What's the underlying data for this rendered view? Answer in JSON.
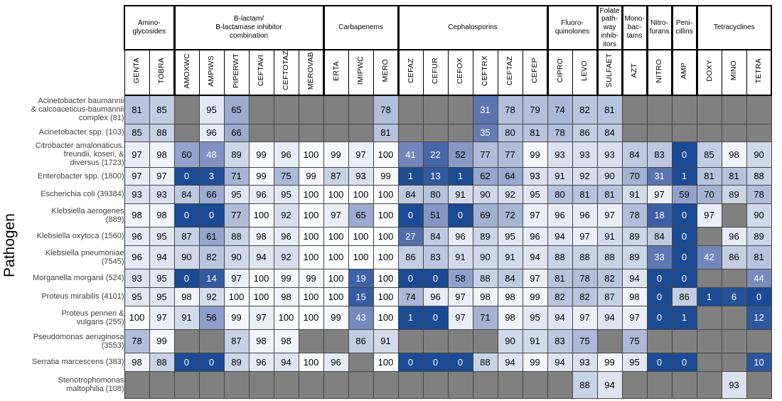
{
  "chart_data": {
    "type": "heatmap",
    "ylabel": "Pathogen",
    "grid": true,
    "color_scale": {
      "min_value": 0,
      "max_value": 100,
      "min_color": "#1a4a93",
      "max_color": "#fbfcfe",
      "no_data_color": "#808080",
      "white_text_below": 50
    },
    "column_groups": [
      {
        "label": "Amino-\nglycosides",
        "columns": [
          "GENTA",
          "TOBRA"
        ]
      },
      {
        "label": "B-lactam/\nB-lactamase inhibitor\ncombination",
        "columns": [
          "AMOXWC",
          "AMPIWS",
          "PIPERWT",
          "CEFTAVI",
          "CEFTOTAZ",
          "MEROVAB"
        ]
      },
      {
        "label": "Carbapenems",
        "columns": [
          "ERTA",
          "IMIPWC",
          "MERO"
        ]
      },
      {
        "label": "Cephalosporins",
        "columns": [
          "CEFAZ",
          "CEFUR",
          "CEFOX",
          "CEFTRX",
          "CEFTAZ",
          "CEFEP"
        ]
      },
      {
        "label": "Fluoro-\nquinolones",
        "columns": [
          "CIPRO",
          "LEVO"
        ]
      },
      {
        "label": "Folate\npath-\nway\ninhib-\nitors",
        "columns": [
          "SULFAET"
        ]
      },
      {
        "label": "Mono-\nbac-\ntams",
        "columns": [
          "AZT"
        ]
      },
      {
        "label": "Nitro-\nfurans",
        "columns": [
          "NITRO"
        ]
      },
      {
        "label": "Peni-\ncillins",
        "columns": [
          "AMP"
        ]
      },
      {
        "label": "Tetracyclines",
        "columns": [
          "DOXY",
          "MINO",
          "TETRA"
        ]
      }
    ],
    "rows": [
      {
        "label": "Acinetobacter baumannii\n& calcoaceticus-baumannii\ncomplex (81)",
        "values": [
          81,
          85,
          null,
          95,
          65,
          null,
          null,
          null,
          null,
          null,
          78,
          null,
          null,
          null,
          31,
          78,
          79,
          74,
          82,
          81,
          null,
          null,
          null,
          null,
          null,
          null
        ]
      },
      {
        "label": "Acinetobacter spp. (103)",
        "values": [
          85,
          88,
          null,
          96,
          66,
          null,
          null,
          null,
          null,
          null,
          81,
          null,
          null,
          null,
          35,
          80,
          81,
          78,
          86,
          84,
          null,
          null,
          null,
          null,
          null,
          null
        ]
      },
      {
        "label": "Citrobacter amalonaticus,\nfreundii, koseri, &\ndiversus (1723)",
        "values": [
          97,
          98,
          60,
          48,
          89,
          99,
          96,
          100,
          99,
          97,
          100,
          41,
          22,
          52,
          77,
          77,
          99,
          93,
          93,
          93,
          84,
          83,
          0,
          85,
          98,
          90
        ]
      },
      {
        "label": "Enterobacter spp. (1800)",
        "values": [
          97,
          97,
          0,
          3,
          71,
          99,
          75,
          99,
          87,
          93,
          99,
          1,
          13,
          1,
          62,
          64,
          93,
          91,
          92,
          90,
          70,
          31,
          1,
          81,
          81,
          88
        ]
      },
      {
        "label": "Escherichia coli (39384)",
        "values": [
          93,
          93,
          84,
          66,
          95,
          96,
          95,
          100,
          100,
          100,
          100,
          84,
          80,
          91,
          90,
          92,
          95,
          80,
          81,
          81,
          91,
          97,
          59,
          70,
          89,
          78
        ]
      },
      {
        "label": "Klebsiella aerogenes\n(889)",
        "values": [
          98,
          98,
          0,
          0,
          77,
          100,
          92,
          100,
          97,
          65,
          100,
          0,
          51,
          0,
          69,
          72,
          97,
          96,
          96,
          97,
          78,
          18,
          0,
          97,
          null,
          90
        ]
      },
      {
        "label": "Klebsiella oxytoca (1560)",
        "values": [
          96,
          95,
          87,
          61,
          88,
          98,
          96,
          100,
          100,
          100,
          100,
          27,
          84,
          96,
          89,
          95,
          96,
          94,
          97,
          91,
          89,
          84,
          0,
          null,
          96,
          89
        ]
      },
      {
        "label": "Klebsiella pneumoniae\n(7545)",
        "values": [
          96,
          94,
          90,
          82,
          90,
          94,
          92,
          100,
          100,
          100,
          100,
          86,
          83,
          91,
          90,
          91,
          94,
          88,
          88,
          88,
          89,
          33,
          0,
          42,
          86,
          81
        ]
      },
      {
        "label": "Morganella morganii (524)",
        "values": [
          93,
          95,
          0,
          14,
          97,
          100,
          99,
          99,
          100,
          19,
          100,
          0,
          0,
          58,
          88,
          84,
          97,
          81,
          78,
          82,
          94,
          0,
          0,
          null,
          null,
          44
        ]
      },
      {
        "label": "Proteus mirabilis (4101)",
        "values": [
          95,
          95,
          98,
          92,
          100,
          100,
          98,
          100,
          100,
          15,
          100,
          74,
          96,
          97,
          98,
          98,
          99,
          82,
          82,
          87,
          98,
          0,
          86,
          1,
          6,
          0
        ]
      },
      {
        "label": "Proteus penneri &\nvulgaris (255)",
        "values": [
          100,
          97,
          91,
          56,
          99,
          97,
          100,
          100,
          99,
          43,
          100,
          1,
          0,
          97,
          71,
          98,
          95,
          94,
          97,
          94,
          97,
          0,
          1,
          null,
          null,
          12
        ]
      },
      {
        "label": "Pseudomonas aeruginosa\n(3553)",
        "values": [
          78,
          99,
          null,
          null,
          87,
          98,
          98,
          null,
          null,
          86,
          91,
          null,
          null,
          null,
          null,
          90,
          91,
          83,
          75,
          null,
          75,
          null,
          null,
          null,
          null,
          null
        ]
      },
      {
        "label": "Serratia marcescens (383)",
        "values": [
          98,
          88,
          0,
          0,
          89,
          96,
          94,
          100,
          96,
          null,
          100,
          0,
          0,
          0,
          88,
          94,
          99,
          94,
          93,
          99,
          95,
          0,
          0,
          null,
          null,
          10
        ]
      },
      {
        "label": "Stenotrophomonas\nmaltophilia (108)",
        "values": [
          null,
          null,
          null,
          null,
          null,
          null,
          null,
          null,
          null,
          null,
          null,
          null,
          null,
          null,
          null,
          null,
          null,
          null,
          88,
          94,
          null,
          null,
          null,
          null,
          93,
          null
        ]
      }
    ]
  }
}
